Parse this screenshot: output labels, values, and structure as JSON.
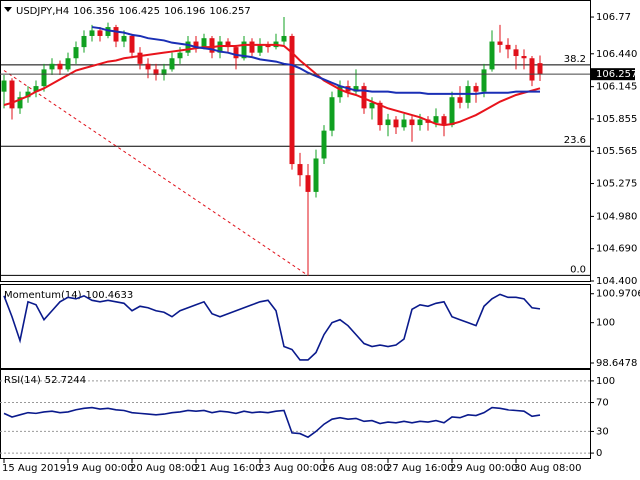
{
  "chart_data": [
    {
      "type": "candlestick",
      "title": "USDJPY,H4",
      "categories": [
        "15 Aug 2019",
        null,
        null,
        null,
        null,
        null,
        null,
        null,
        "19 Aug 00:00",
        null,
        null,
        null,
        null,
        null,
        null,
        null,
        "20 Aug 08:00",
        null,
        null,
        null,
        null,
        null,
        null,
        null,
        "21 Aug 16:00",
        null,
        null,
        null,
        null,
        null,
        null,
        null,
        "23 Aug 00:00",
        null,
        null,
        null,
        null,
        null,
        null,
        null,
        "26 Aug 08:00",
        null,
        null,
        null,
        null,
        null,
        null,
        null,
        "27 Aug 16:00",
        null,
        null,
        null,
        null,
        null,
        null,
        null,
        "29 Aug 00:00",
        null,
        null,
        null,
        null,
        null,
        null,
        null,
        "30 Aug 08:00",
        null,
        null,
        null
      ],
      "ohlc": [
        [
          106.1,
          106.25,
          105.95,
          106.2
        ],
        [
          106.2,
          106.22,
          105.85,
          105.95
        ],
        [
          105.95,
          106.1,
          105.9,
          106.05
        ],
        [
          106.05,
          106.15,
          106.0,
          106.1
        ],
        [
          106.1,
          106.2,
          106.05,
          106.15
        ],
        [
          106.15,
          106.35,
          106.1,
          106.3
        ],
        [
          106.3,
          106.4,
          106.25,
          106.35
        ],
        [
          106.35,
          106.38,
          106.25,
          106.3
        ],
        [
          106.3,
          106.45,
          106.28,
          106.4
        ],
        [
          106.4,
          106.55,
          106.35,
          106.5
        ],
        [
          106.5,
          106.65,
          106.45,
          106.6
        ],
        [
          106.6,
          106.7,
          106.55,
          106.65
        ],
        [
          106.65,
          106.68,
          106.55,
          106.6
        ],
        [
          106.6,
          106.72,
          106.58,
          106.68
        ],
        [
          106.68,
          106.7,
          106.5,
          106.55
        ],
        [
          106.55,
          106.65,
          106.5,
          106.6
        ],
        [
          106.6,
          106.62,
          106.4,
          106.45
        ],
        [
          106.45,
          106.5,
          106.3,
          106.35
        ],
        [
          106.35,
          106.4,
          106.22,
          106.3
        ],
        [
          106.3,
          106.35,
          106.2,
          106.25
        ],
        [
          106.25,
          106.35,
          106.2,
          106.3
        ],
        [
          106.3,
          106.45,
          106.28,
          106.4
        ],
        [
          106.4,
          106.5,
          106.35,
          106.45
        ],
        [
          106.45,
          106.6,
          106.42,
          106.55
        ],
        [
          106.55,
          106.6,
          106.45,
          106.5
        ],
        [
          106.5,
          106.62,
          106.48,
          106.58
        ],
        [
          106.58,
          106.6,
          106.4,
          106.45
        ],
        [
          106.45,
          106.6,
          106.4,
          106.55
        ],
        [
          106.55,
          106.58,
          106.45,
          106.5
        ],
        [
          106.5,
          106.52,
          106.3,
          106.4
        ],
        [
          106.4,
          106.6,
          106.38,
          106.55
        ],
        [
          106.55,
          106.58,
          106.42,
          106.45
        ],
        [
          106.45,
          106.58,
          106.42,
          106.52
        ],
        [
          106.52,
          106.55,
          106.45,
          106.5
        ],
        [
          106.5,
          106.62,
          106.48,
          106.55
        ],
        [
          106.55,
          106.77,
          106.52,
          106.6
        ],
        [
          106.6,
          106.62,
          105.4,
          105.45
        ],
        [
          105.45,
          105.55,
          105.25,
          105.35
        ],
        [
          105.35,
          105.45,
          104.45,
          105.2
        ],
        [
          105.2,
          105.58,
          105.15,
          105.5
        ],
        [
          105.5,
          105.8,
          105.45,
          105.75
        ],
        [
          105.75,
          106.1,
          105.7,
          106.05
        ],
        [
          106.05,
          106.2,
          106.0,
          106.15
        ],
        [
          106.15,
          106.2,
          106.05,
          106.1
        ],
        [
          106.1,
          106.3,
          106.08,
          106.15
        ],
        [
          106.15,
          106.18,
          105.9,
          105.95
        ],
        [
          105.95,
          106.05,
          105.85,
          106.0
        ],
        [
          106.0,
          106.02,
          105.75,
          105.8
        ],
        [
          105.8,
          105.9,
          105.7,
          105.85
        ],
        [
          105.85,
          105.88,
          105.72,
          105.78
        ],
        [
          105.78,
          105.9,
          105.75,
          105.85
        ],
        [
          105.85,
          105.88,
          105.65,
          105.8
        ],
        [
          105.8,
          105.9,
          105.75,
          105.85
        ],
        [
          105.85,
          105.88,
          105.75,
          105.82
        ],
        [
          105.82,
          105.95,
          105.78,
          105.88
        ],
        [
          105.88,
          105.9,
          105.7,
          105.8
        ],
        [
          105.8,
          106.1,
          105.78,
          106.05
        ],
        [
          106.05,
          106.15,
          105.95,
          106.0
        ],
        [
          106.0,
          106.2,
          105.95,
          106.15
        ],
        [
          106.15,
          106.18,
          106.0,
          106.1
        ],
        [
          106.1,
          106.35,
          106.05,
          106.3
        ],
        [
          106.3,
          106.65,
          106.28,
          106.55
        ],
        [
          106.55,
          106.7,
          106.45,
          106.52
        ],
        [
          106.52,
          106.58,
          106.4,
          106.48
        ],
        [
          106.48,
          106.52,
          106.3,
          106.42
        ],
        [
          106.42,
          106.48,
          106.3,
          106.4
        ],
        [
          106.4,
          106.42,
          106.15,
          106.2
        ],
        [
          106.356,
          106.425,
          106.196,
          106.257
        ]
      ],
      "up_color": "#10a020",
      "down_color": "#e0101a",
      "series": [
        {
          "color": "#e8141c",
          "values": [
            105.98,
            106.0,
            106.03,
            106.06,
            106.1,
            106.13,
            106.17,
            106.21,
            106.25,
            106.29,
            106.31,
            106.33,
            106.35,
            106.37,
            106.38,
            106.4,
            106.41,
            106.42,
            106.43,
            106.44,
            106.45,
            106.46,
            106.47,
            106.48,
            106.49,
            106.5,
            106.5,
            106.51,
            106.51,
            106.51,
            106.52,
            106.52,
            106.52,
            106.52,
            106.52,
            106.51,
            106.45,
            106.38,
            106.32,
            106.26,
            106.2,
            106.16,
            106.12,
            106.09,
            106.07,
            106.04,
            106.01,
            105.98,
            105.95,
            105.93,
            105.91,
            105.89,
            105.87,
            105.84,
            105.81,
            105.8,
            105.81,
            105.83,
            105.86,
            105.89,
            105.93,
            105.97,
            106.01,
            106.04,
            106.07,
            106.09,
            106.11,
            106.13
          ]
        },
        {
          "color": "#1a2fb5",
          "values": [
            null,
            null,
            null,
            null,
            null,
            null,
            null,
            null,
            null,
            null,
            null,
            106.68,
            106.67,
            106.65,
            106.64,
            106.63,
            106.61,
            106.6,
            106.58,
            106.57,
            106.56,
            106.54,
            106.53,
            106.52,
            106.5,
            106.49,
            106.48,
            106.46,
            106.45,
            106.43,
            106.42,
            106.41,
            106.39,
            106.38,
            106.37,
            106.35,
            106.34,
            106.31,
            106.27,
            106.24,
            106.21,
            106.18,
            106.15,
            106.13,
            106.11,
            106.11,
            106.1,
            106.1,
            106.1,
            106.09,
            106.09,
            106.09,
            106.09,
            106.08,
            106.08,
            106.08,
            106.08,
            106.08,
            106.08,
            106.08,
            106.09,
            106.09,
            106.09,
            106.09,
            106.1,
            106.1,
            106.1,
            106.1
          ]
        }
      ],
      "fib_levels": [
        {
          "label": "38.2",
          "value": 106.34
        },
        {
          "label": "23.6",
          "value": 105.61
        },
        {
          "label": "0.0",
          "value": 104.45
        }
      ],
      "trendline": {
        "from": [
          0,
          106.29
        ],
        "to": [
          38,
          104.45
        ],
        "color": "#e0101a"
      },
      "ylim": [
        104.4,
        106.905
      ],
      "yticks": [
        106.77,
        {
          "value": 106.44,
          "label": "106.440"
        },
        106.145,
        105.855,
        105.565,
        105.275,
        {
          "value": 104.98,
          "label": "104.980"
        },
        {
          "value": 104.69,
          "label": "104.690"
        },
        {
          "value": 104.4,
          "label": "104.400"
        }
      ]
    },
    {
      "type": "line",
      "title": "Momentum(14)",
      "color": "#0a1a8c",
      "values": [
        100.9,
        100.2,
        99.4,
        100.7,
        100.6,
        100.1,
        100.4,
        100.7,
        100.85,
        100.8,
        100.9,
        100.75,
        100.7,
        100.75,
        100.7,
        100.65,
        100.4,
        100.55,
        100.5,
        100.4,
        100.35,
        100.2,
        100.4,
        100.5,
        100.6,
        100.7,
        100.3,
        100.2,
        100.3,
        100.4,
        100.5,
        100.6,
        100.7,
        100.75,
        100.4,
        99.2,
        99.1,
        98.75,
        98.75,
        99.0,
        99.6,
        100.0,
        100.1,
        99.9,
        99.6,
        99.3,
        99.2,
        99.25,
        99.2,
        99.25,
        99.45,
        100.45,
        100.6,
        100.55,
        100.65,
        100.7,
        100.2,
        100.1,
        100.0,
        99.9,
        100.55,
        100.8,
        100.95,
        100.85,
        100.85,
        100.8,
        100.5,
        100.4633
      ],
      "ylim": [
        98.48,
        101.23
      ],
      "yticks": [
        100.9706,
        100,
        98.6478
      ],
      "grid": false
    },
    {
      "type": "line",
      "title": "RSI(14)",
      "color": "#0a1a8c",
      "values": [
        55,
        50,
        53,
        56,
        55,
        57,
        58,
        56,
        57,
        60,
        62,
        63,
        61,
        62,
        60,
        59,
        56,
        55,
        54,
        53,
        54,
        56,
        57,
        59,
        58,
        59,
        56,
        58,
        57,
        55,
        58,
        56,
        57,
        56,
        58,
        59,
        28,
        27,
        22,
        30,
        40,
        47,
        49,
        47,
        48,
        44,
        45,
        41,
        43,
        42,
        44,
        42,
        44,
        43,
        45,
        42,
        50,
        49,
        53,
        52,
        56,
        63,
        62,
        60,
        59,
        58,
        51,
        52.7244
      ],
      "ylim": [
        -6.8,
        113.7
      ],
      "yticks": [
        100,
        70,
        30,
        0
      ],
      "grid": true
    }
  ]
}
